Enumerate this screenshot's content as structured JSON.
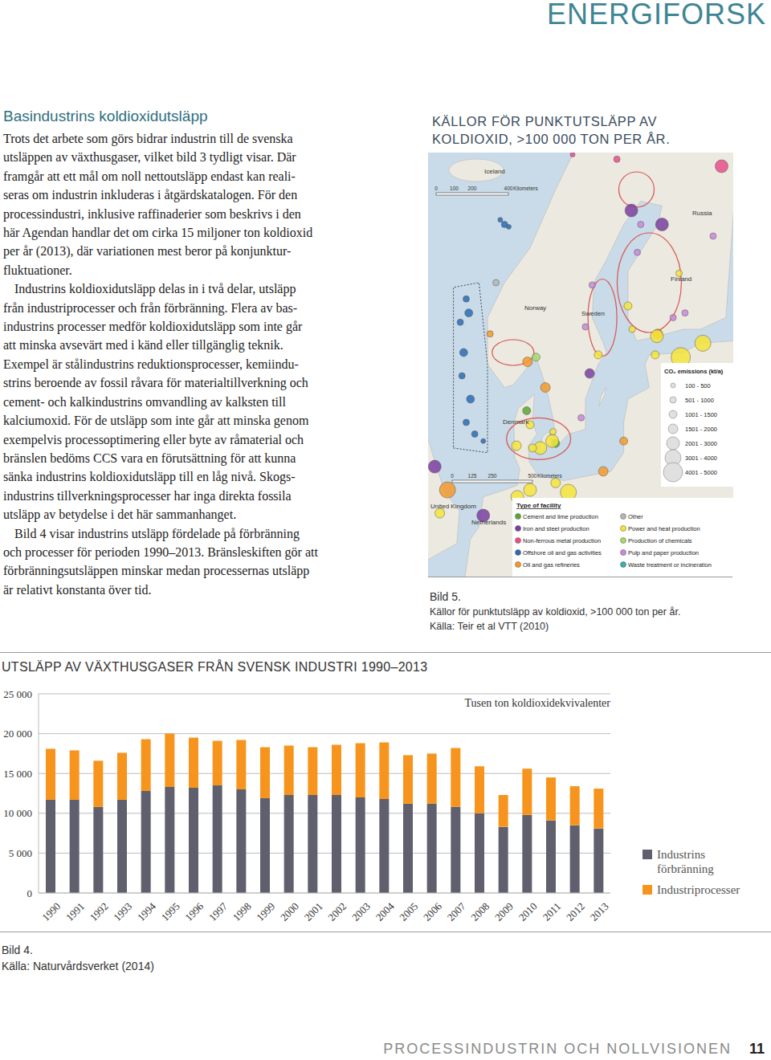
{
  "header": {
    "brand": "ENERGIFORSK"
  },
  "article": {
    "heading": "Basindustrins koldioxidutsläpp",
    "paragraphs": [
      [
        "Trots det arbete som görs bidrar industrin till de svenska",
        "utsläppen av växthusgaser, vilket bild 3 tydligt visar. Där",
        "framgår att ett mål om noll nettoutsläpp endast kan reali-",
        "seras om industrin inkluderas i åtgärdskatalogen. För den",
        "processindustri, inklusive raffinaderier som beskrivs i den",
        "här Agendan handlar det om cirka 15 miljoner ton koldioxid",
        "per år (2013), där variationen mest beror på konjunktur-",
        "fluktuationer."
      ],
      [
        "Industrins koldioxidutsläpp delas in i två delar, utsläpp",
        "från industriprocesser och från förbränning. Flera av bas-",
        "industrins processer medför koldioxidutsläpp som inte går",
        "att minska avsevärt med i känd eller tillgänglig teknik.",
        "Exempel är stålindustrins reduktionsprocesser, kemiindu-",
        "strins beroende av fossil råvara för materialtillverkning och",
        "cement- och kalkindustrins omvandling av kalksten till",
        "kalciumoxid. För de utsläpp som inte går att minska genom",
        "exempelvis processoptimering eller byte av råmaterial och",
        "bränslen bedöms CCS vara en förutsättning för att kunna",
        "sänka industrins koldioxidutsläpp till en låg nivå. Skogs-",
        "industrins tillverkningsprocesser har inga direkta fossila",
        "utsläpp av betydelse i det här sammanhanget."
      ],
      [
        "Bild 4 visar industrins utsläpp fördelade på förbränning",
        "och processer för perioden 1990–2013. Bränsleskiften gör att",
        "förbränningsutsläppen minskar medan processernas utsläpp",
        "är relativt konstanta över tid."
      ]
    ]
  },
  "map": {
    "title": "KÄLLOR FÖR PUNKTUTSLÄPP AV KOLDIOXID, >100 000 TON PER ÅR.",
    "countries": [
      "Iceland",
      "Russia",
      "Finland",
      "Norway",
      "Sweden",
      "Denmark",
      "United Kingdom",
      "Netherlands"
    ],
    "scale_bars": [
      {
        "ticks": [
          0,
          100,
          200,
          400
        ],
        "unit": "Kilometers"
      },
      {
        "ticks": [
          0,
          125,
          250,
          500
        ],
        "unit": "Kilometers"
      }
    ],
    "emissions_legend": {
      "title": "CO₂ emissions (kt/a)",
      "classes": [
        "100 - 500",
        "501 - 1000",
        "1001 - 1500",
        "1501 - 2000",
        "2001 - 3000",
        "3001 - 4000",
        "4001 - 5000"
      ]
    },
    "facility_legend": {
      "title": "Type of facility",
      "types": [
        {
          "name": "Cement and lime production",
          "color": "#5aa832"
        },
        {
          "name": "Iron and steel production",
          "color": "#7b3fa0"
        },
        {
          "name": "Non-ferrous metal production",
          "color": "#e8508a"
        },
        {
          "name": "Offshore oil and gas activities",
          "color": "#2a6db5"
        },
        {
          "name": "Oil and gas refineries",
          "color": "#f39a2b"
        },
        {
          "name": "Other",
          "color": "#b5b5b5"
        },
        {
          "name": "Power and heat production",
          "color": "#f5e43a"
        },
        {
          "name": "Production of chemicals",
          "color": "#a8d86a"
        },
        {
          "name": "Pulp and paper production",
          "color": "#c88ad8"
        },
        {
          "name": "Waste treatment or incineration",
          "color": "#38b0b0"
        }
      ]
    },
    "sites": [
      {
        "lon": 2.5,
        "lat": 56.5,
        "size_class": 1,
        "type": 3
      },
      {
        "lon": 3,
        "lat": 57.5,
        "size_class": 2,
        "type": 3
      },
      {
        "lon": 2,
        "lat": 58.5,
        "size_class": 1,
        "type": 3
      },
      {
        "lon": 2.2,
        "lat": 59.5,
        "size_class": 2,
        "type": 3
      },
      {
        "lon": 1.8,
        "lat": 60.8,
        "size_class": 1,
        "type": 3
      },
      {
        "lon": 2.8,
        "lat": 61.2,
        "size_class": 2,
        "type": 3
      },
      {
        "lon": 3.5,
        "lat": 56,
        "size_class": 1,
        "type": 3
      },
      {
        "lon": 4.5,
        "lat": 55.7,
        "size_class": 0,
        "type": 3
      },
      {
        "lon": 7,
        "lat": 65,
        "size_class": 1,
        "type": 3
      },
      {
        "lon": 7.5,
        "lat": 64.9,
        "size_class": 0,
        "type": 3
      },
      {
        "lon": 6.5,
        "lat": 65.2,
        "size_class": 0,
        "type": 3
      },
      {
        "lon": 2.5,
        "lat": 61.8,
        "size_class": 1,
        "type": 3
      },
      {
        "lon": 5.3,
        "lat": 60.3,
        "size_class": 1,
        "type": 4
      },
      {
        "lon": 6,
        "lat": 62.5,
        "size_class": 1,
        "type": 5
      },
      {
        "lon": 10.7,
        "lat": 59.3,
        "size_class": 2,
        "type": 7
      },
      {
        "lon": 9.7,
        "lat": 59.1,
        "size_class": 3,
        "type": 4
      },
      {
        "lon": 15,
        "lat": 68,
        "size_class": 0,
        "type": 2
      },
      {
        "lon": 11.8,
        "lat": 58,
        "size_class": 3,
        "type": 4
      },
      {
        "lon": 17,
        "lat": 58.6,
        "size_class": 3,
        "type": 1
      },
      {
        "lon": 18,
        "lat": 59.4,
        "size_class": 2,
        "type": 6
      },
      {
        "lon": 16.5,
        "lat": 60.6,
        "size_class": 1,
        "type": 8
      },
      {
        "lon": 17.3,
        "lat": 62.4,
        "size_class": 1,
        "type": 8
      },
      {
        "lon": 21.9,
        "lat": 65.6,
        "size_class": 4,
        "type": 1
      },
      {
        "lon": 20.2,
        "lat": 67.8,
        "size_class": 1,
        "type": 2
      },
      {
        "lon": 13,
        "lat": 55.6,
        "size_class": 2,
        "type": 0
      },
      {
        "lon": 16,
        "lat": 56.7,
        "size_class": 1,
        "type": 8
      },
      {
        "lon": 12.7,
        "lat": 56.1,
        "size_class": 1,
        "type": 6
      },
      {
        "lon": 25,
        "lat": 60.3,
        "size_class": 3,
        "type": 4
      },
      {
        "lon": 22,
        "lat": 60.5,
        "size_class": 1,
        "type": 6
      },
      {
        "lon": 24.9,
        "lat": 60.2,
        "size_class": 4,
        "type": 6
      },
      {
        "lon": 23,
        "lat": 65,
        "size_class": 1,
        "type": 8
      },
      {
        "lon": 25.5,
        "lat": 65,
        "size_class": 4,
        "type": 1
      },
      {
        "lon": 26.8,
        "lat": 61,
        "size_class": 1,
        "type": 8
      },
      {
        "lon": 28.2,
        "lat": 61.2,
        "size_class": 1,
        "type": 8
      },
      {
        "lon": 27.5,
        "lat": 62.9,
        "size_class": 1,
        "type": 6
      },
      {
        "lon": 22.6,
        "lat": 63.8,
        "size_class": 1,
        "type": 8
      },
      {
        "lon": 21.5,
        "lat": 61.5,
        "size_class": 2,
        "type": 6
      },
      {
        "lon": 30.3,
        "lat": 59.9,
        "size_class": 5,
        "type": 6
      },
      {
        "lon": 32.5,
        "lat": 67.5,
        "size_class": 4,
        "type": 2
      },
      {
        "lon": 31.5,
        "lat": 64.5,
        "size_class": 1,
        "type": 8
      },
      {
        "lon": 27.7,
        "lat": 59.3,
        "size_class": 6,
        "type": 6
      },
      {
        "lon": 24.7,
        "lat": 59.4,
        "size_class": 2,
        "type": 6
      },
      {
        "lon": 10,
        "lat": 56.4,
        "size_class": 2,
        "type": 6
      },
      {
        "lon": 12.6,
        "lat": 55.7,
        "size_class": 4,
        "type": 6
      },
      {
        "lon": 8.4,
        "lat": 55.5,
        "size_class": 3,
        "type": 6
      },
      {
        "lon": 11.2,
        "lat": 55.4,
        "size_class": 4,
        "type": 6
      },
      {
        "lon": 10.3,
        "lat": 55.4,
        "size_class": 2,
        "type": 6
      },
      {
        "lon": 9.6,
        "lat": 57,
        "size_class": 2,
        "type": 0
      },
      {
        "lon": 10,
        "lat": 53.6,
        "size_class": 4,
        "type": 6
      },
      {
        "lon": 8.5,
        "lat": 53.3,
        "size_class": 4,
        "type": 6
      },
      {
        "lon": 13,
        "lat": 53.9,
        "size_class": 3,
        "type": 6
      },
      {
        "lon": 14.5,
        "lat": 53.5,
        "size_class": 5,
        "type": 6
      },
      {
        "lon": 18.6,
        "lat": 54.4,
        "size_class": 3,
        "type": 4
      },
      {
        "lon": 21,
        "lat": 55.7,
        "size_class": 2,
        "type": 4
      },
      {
        "lon": 4.5,
        "lat": 52.5,
        "size_class": 4,
        "type": 1
      },
      {
        "lon": 0.3,
        "lat": 53.6,
        "size_class": 5,
        "type": 4
      },
      {
        "lon": -1.2,
        "lat": 54.6,
        "size_class": 4,
        "type": 1
      },
      {
        "lon": -0.6,
        "lat": 52.6,
        "size_class": 3,
        "type": 6
      }
    ]
  },
  "map_caption": {
    "label": "Bild 5.",
    "text": "Källor för punktutsläpp av koldioxid, >100 000 ton per år.",
    "source": "Källa: Teir et al VTT (2010)"
  },
  "chart_data": {
    "type": "bar",
    "stacked": true,
    "title": "UTSLÄPP AV VÄXTHUSGASER FRÅN SVENSK INDUSTRI 1990–2013",
    "y_label": "Tusen ton koldioxidekvivalenter",
    "categories": [
      "1990",
      "1991",
      "1992",
      "1993",
      "1994",
      "1995",
      "1996",
      "1997",
      "1998",
      "1999",
      "2000",
      "2001",
      "2002",
      "2003",
      "2004",
      "2005",
      "2006",
      "2007",
      "2008",
      "2009",
      "2010",
      "2011",
      "2012",
      "2013"
    ],
    "series": [
      {
        "name": "Industrins förbränning",
        "color": "#5f5f6e",
        "values": [
          11700,
          11700,
          10800,
          11700,
          12800,
          13300,
          13200,
          13500,
          13000,
          11900,
          12300,
          12300,
          12300,
          12000,
          11800,
          11200,
          11200,
          10800,
          10000,
          8300,
          9800,
          9100,
          8500,
          8100
        ]
      },
      {
        "name": "Industriprocesser",
        "color": "#f7941d",
        "values": [
          6400,
          6200,
          5800,
          5900,
          6500,
          6700,
          6300,
          5600,
          6200,
          6400,
          6200,
          6000,
          6300,
          6800,
          7100,
          6100,
          6300,
          7400,
          5900,
          4000,
          5800,
          5400,
          4900,
          5000
        ]
      }
    ],
    "ylim": [
      0,
      25000
    ],
    "yticks": [
      0,
      {
        "value": 5000,
        "label": "5 000"
      },
      {
        "value": 10000,
        "label": "10 000"
      },
      {
        "value": 15000,
        "label": "15 000"
      },
      {
        "value": 20000,
        "label": "20 000"
      },
      {
        "value": 25000,
        "label": "25 000"
      }
    ],
    "grid": true,
    "legend": "right"
  },
  "chart_caption": {
    "label": "Bild 4.",
    "source": "Källa: Naturvårdsverket (2014)"
  },
  "footer": {
    "title": "PROCESSINDUSTRIN OCH NOLLVISIONEN",
    "page": 11
  }
}
